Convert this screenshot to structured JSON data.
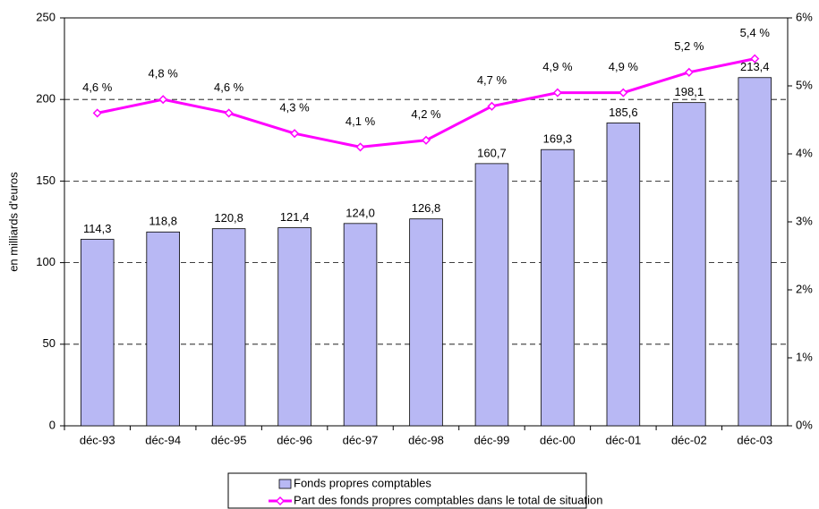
{
  "chart_data": {
    "type": "bar-line",
    "y_label": "en milliards d'euros",
    "categories": [
      "déc-93",
      "déc-94",
      "déc-95",
      "déc-96",
      "déc-97",
      "déc-98",
      "déc-99",
      "déc-00",
      "déc-01",
      "déc-02",
      "déc-03"
    ],
    "series": [
      {
        "name": "Fonds propres comptables",
        "type": "bar",
        "color": "#b8b8f4",
        "values": [
          114.3,
          118.8,
          120.8,
          121.4,
          124.0,
          126.8,
          160.7,
          169.3,
          185.6,
          198.1,
          213.4
        ],
        "value_labels": [
          "114,3",
          "118,8",
          "120,8",
          "121,4",
          "124,0",
          "126,8",
          "160,7",
          "169,3",
          "185,6",
          "198,1",
          "213,4"
        ]
      },
      {
        "name": "Part des fonds propres comptables dans le total de situation",
        "type": "line",
        "axis": "y2",
        "color": "#ff00ff",
        "values": [
          4.6,
          4.8,
          4.6,
          4.3,
          4.1,
          4.2,
          4.7,
          4.9,
          4.9,
          5.2,
          5.4
        ],
        "value_labels": [
          "4,6 %",
          "4,8 %",
          "4,6 %",
          "4,3 %",
          "4,1 %",
          "4,2 %",
          "4,7 %",
          "4,9 %",
          "4,9 %",
          "5,2 %",
          "5,4 %"
        ]
      }
    ],
    "ylim": [
      0,
      250
    ],
    "yticks": [
      0,
      50,
      100,
      150,
      200,
      250
    ],
    "y2lim": [
      0,
      6
    ],
    "y2ticks": [
      {
        "value": 0,
        "label": "0%"
      },
      {
        "value": 1,
        "label": "1%"
      },
      {
        "value": 2,
        "label": "2%"
      },
      {
        "value": 3,
        "label": "3%"
      },
      {
        "value": 4,
        "label": "4%"
      },
      {
        "value": 5,
        "label": "5%"
      },
      {
        "value": 6,
        "label": "6%"
      }
    ],
    "grid": true,
    "legend": "bottom"
  }
}
